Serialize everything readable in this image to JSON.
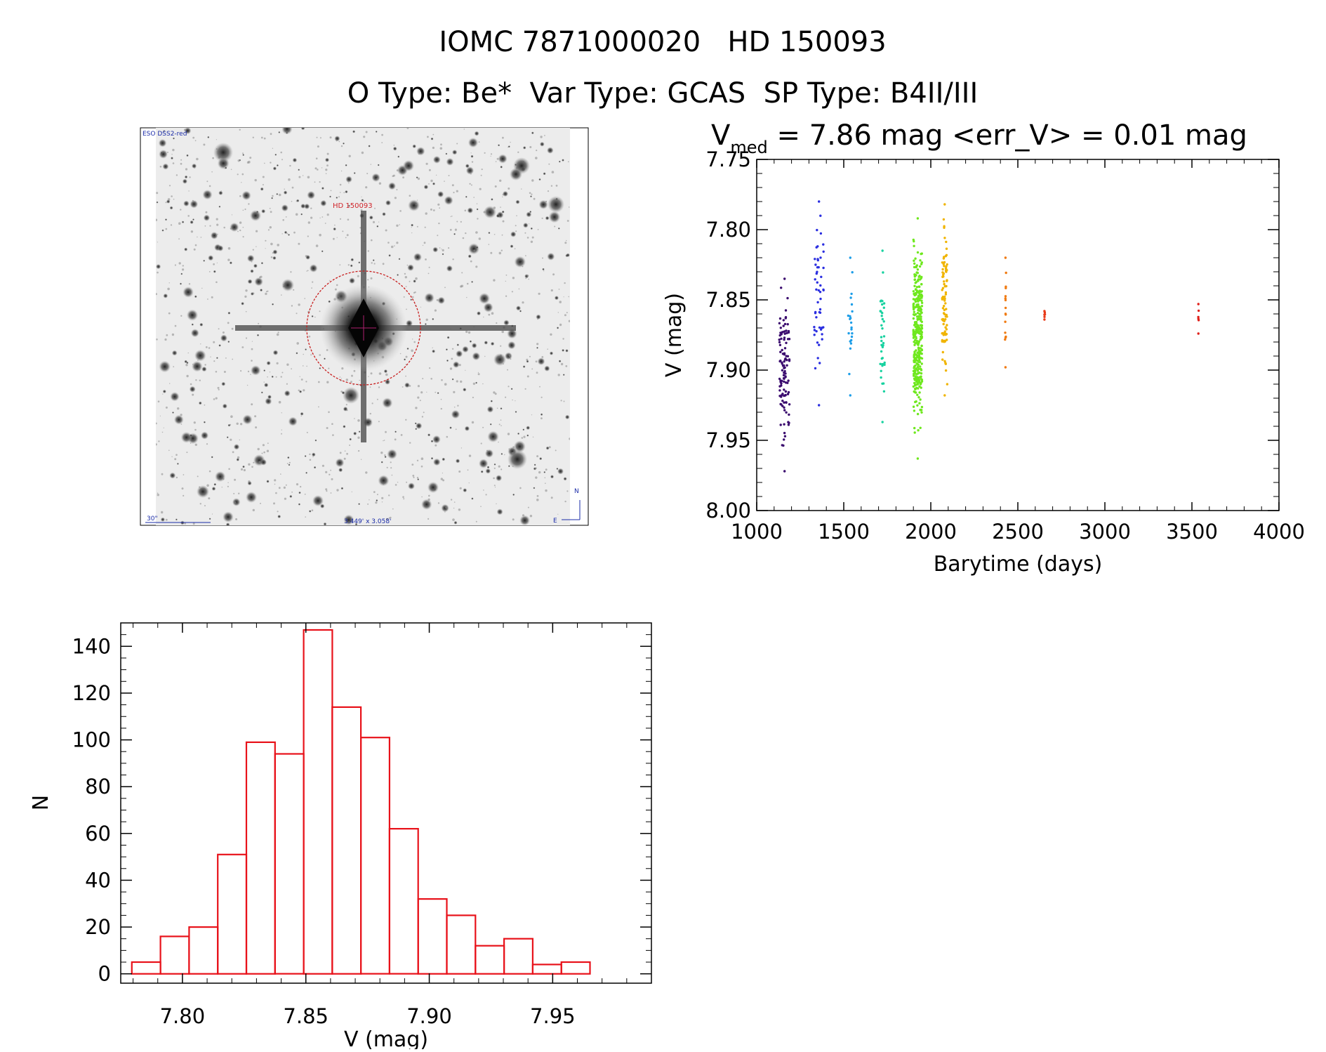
{
  "header": {
    "title_line1": "IOMC 7871000020   HD 150093",
    "title_line2": "O Type: Be*  Var Type: GCAS  SP Type: B4II/III"
  },
  "image_panel": {
    "survey_label": "ESO DSS2-red",
    "star_label": "HD 150093",
    "scale_label": "30\"",
    "size_label": "3.449' x 3.058'",
    "north_label": "N",
    "east_label": "E"
  },
  "chart_data": [
    {
      "type": "scatter",
      "title_v": "V",
      "title_sub": "med",
      "title_rest": " = 7.86 mag <err_V> = 0.01 mag",
      "xlabel": "Barytime (days)",
      "ylabel": "V (mag)",
      "xlim": [
        1000,
        4000
      ],
      "ylim": [
        8.0,
        7.75
      ],
      "xticks": [
        1000,
        1500,
        2000,
        2500,
        3000,
        3500,
        4000
      ],
      "xtick_labels": [
        "1000",
        "1500",
        "2000",
        "2500",
        "3000",
        "3500",
        "4000"
      ],
      "yticks": [
        7.75,
        7.8,
        7.85,
        7.9,
        7.95,
        8.0
      ],
      "ytick_labels": [
        "7.75",
        "7.80",
        "7.85",
        "7.90",
        "7.95",
        "8.00"
      ],
      "series": [
        {
          "name": "g1",
          "x": 1130,
          "width": 60,
          "ymin": 7.835,
          "ymax": 7.972,
          "n": 110,
          "color": "#3a0a6e"
        },
        {
          "name": "g2",
          "x": 1330,
          "width": 55,
          "ymin": 7.78,
          "ymax": 7.925,
          "n": 50,
          "color": "#2a2ee0"
        },
        {
          "name": "g3",
          "x": 1525,
          "width": 25,
          "ymin": 7.82,
          "ymax": 7.918,
          "n": 20,
          "color": "#1e9ee8"
        },
        {
          "name": "g4",
          "x": 1710,
          "width": 25,
          "ymin": 7.815,
          "ymax": 7.937,
          "n": 40,
          "color": "#18d2a0"
        },
        {
          "name": "g5",
          "x": 1900,
          "width": 50,
          "ymin": 7.792,
          "ymax": 7.963,
          "n": 360,
          "color": "#6fe81e"
        },
        {
          "name": "g6",
          "x": 2065,
          "width": 30,
          "ymin": 7.782,
          "ymax": 7.918,
          "n": 90,
          "color": "#f0b400"
        },
        {
          "name": "g7",
          "x": 2425,
          "width": 8,
          "ymin": 7.82,
          "ymax": 7.898,
          "n": 14,
          "color": "#f07a10"
        },
        {
          "name": "g8",
          "x": 2650,
          "width": 6,
          "ymin": 7.858,
          "ymax": 7.864,
          "n": 4,
          "color": "#e83a18"
        },
        {
          "name": "g9",
          "x": 3535,
          "width": 4,
          "ymin": 7.853,
          "ymax": 7.874,
          "n": 4,
          "color": "#e0201a"
        }
      ]
    },
    {
      "type": "bar",
      "xlabel": "V (mag)",
      "ylabel": "N",
      "xlim": [
        7.775,
        7.99
      ],
      "ylim": [
        -4,
        150
      ],
      "bin_width": 0.0116,
      "bin_start": 7.7795,
      "values": [
        5,
        16,
        20,
        51,
        99,
        94,
        147,
        114,
        101,
        62,
        32,
        25,
        12,
        15,
        4,
        5
      ],
      "xticks": [
        7.8,
        7.85,
        7.9,
        7.95
      ],
      "xtick_labels": [
        "7.80",
        "7.85",
        "7.90",
        "7.95"
      ],
      "yticks": [
        0,
        20,
        40,
        60,
        80,
        100,
        120,
        140
      ],
      "ytick_labels": [
        "0",
        "20",
        "40",
        "60",
        "80",
        "100",
        "120",
        "140"
      ],
      "color": "#e8121a"
    }
  ]
}
